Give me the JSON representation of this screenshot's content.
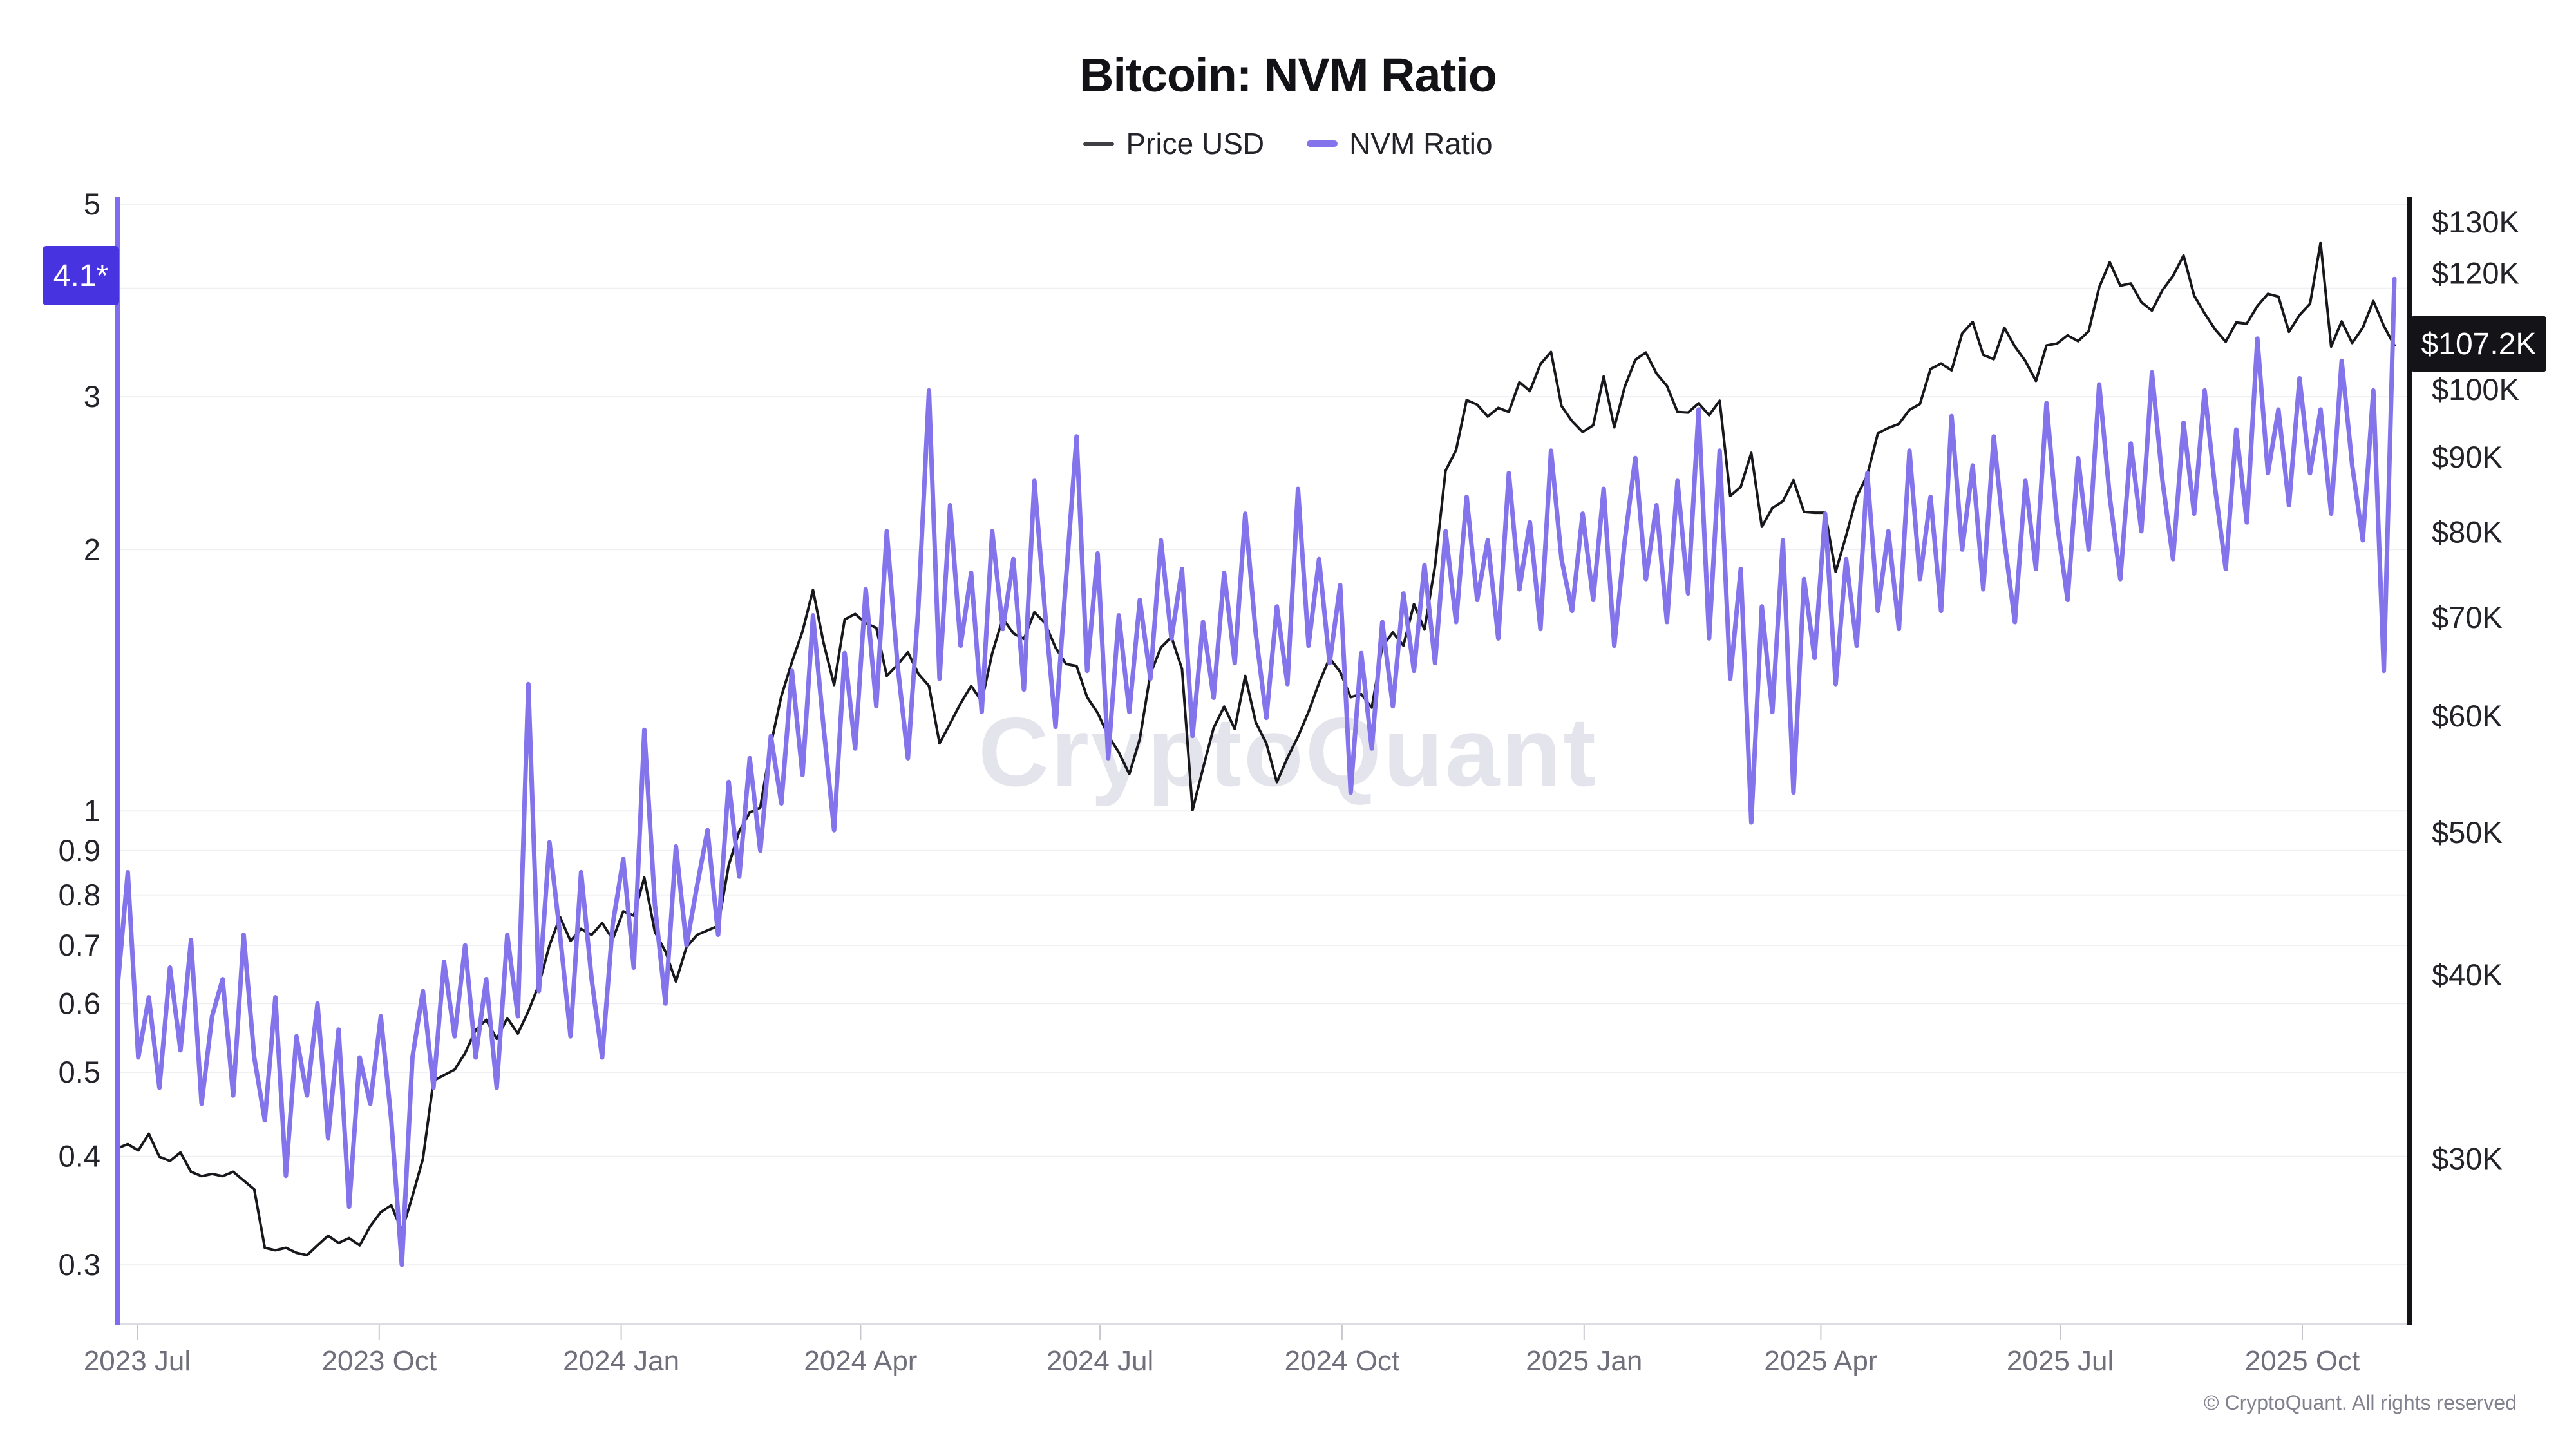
{
  "header": {
    "title": "Bitcoin: NVM Ratio"
  },
  "legend": {
    "items": [
      {
        "label": "Price USD",
        "color": "#3f3f46"
      },
      {
        "label": "NVM Ratio",
        "color": "#8374ec"
      }
    ]
  },
  "watermark": {
    "text": "CryptoQuant"
  },
  "footer": {
    "copyright": "© CryptoQuant. All rights reserved"
  },
  "annotations": {
    "nvm_last": {
      "label": "4.1*",
      "value": 4.1,
      "bg": "#4733df",
      "text_color": "#ffffff"
    },
    "price_last": {
      "label": "$107.2K",
      "value": 107.2,
      "bg": "#141418",
      "text_color": "#ffffff"
    }
  },
  "chart_data": {
    "type": "line",
    "title": "Bitcoin: NVM Ratio",
    "start_date": "2023-06-23",
    "end_date": "2025-11-05",
    "sample_interval_days": 4,
    "grid": true,
    "legend_position": "top-center",
    "colors": {
      "nvm_line": "#8374ec",
      "nvm_axis": "#7e6df0",
      "price_line": "#17171c",
      "price_axis": "#131318",
      "gridline": "#f0f0f4",
      "x_axis_line": "#dcdce3",
      "x_tick": "#c6c6cf",
      "tick_label": "#232329",
      "x_label": "#70707c",
      "watermark": "#e4e4ec"
    },
    "x_axis": {
      "ticks": [
        {
          "label": "2023 Jul",
          "day": 0
        },
        {
          "label": "2023 Oct",
          "day": 92
        },
        {
          "label": "2024 Jan",
          "day": 184
        },
        {
          "label": "2024 Apr",
          "day": 275
        },
        {
          "label": "2024 Jul",
          "day": 366
        },
        {
          "label": "2024 Oct",
          "day": 458
        },
        {
          "label": "2025 Jan",
          "day": 550
        },
        {
          "label": "2025 Apr",
          "day": 640
        },
        {
          "label": "2025 Jul",
          "day": 731
        },
        {
          "label": "2025 Oct",
          "day": 823
        }
      ]
    },
    "left_axis": {
      "name": "NVM Ratio",
      "scale": "log",
      "range": [
        0.256,
        5.06
      ],
      "last_value": 4.1,
      "ticks": [
        {
          "label": "5",
          "value": 5
        },
        {
          "label": "3",
          "value": 3
        },
        {
          "label": "2",
          "value": 2
        },
        {
          "label": "1",
          "value": 1
        },
        {
          "label": "0.9",
          "value": 0.9
        },
        {
          "label": "0.8",
          "value": 0.8
        },
        {
          "label": "0.7",
          "value": 0.7
        },
        {
          "label": "0.6",
          "value": 0.6
        },
        {
          "label": "0.5",
          "value": 0.5
        },
        {
          "label": "0.4",
          "value": 0.4
        },
        {
          "label": "0.3",
          "value": 0.3
        }
      ],
      "gridline_values": [
        5,
        4,
        3,
        2,
        1,
        0.9,
        0.8,
        0.7,
        0.6,
        0.5,
        0.4,
        0.3
      ]
    },
    "right_axis": {
      "name": "Price USD",
      "scale": "log",
      "unit": "thousand USD",
      "range": [
        23.2,
        134.7
      ],
      "last_value": 107.2,
      "ticks": [
        {
          "label": "$130K",
          "value": 130
        },
        {
          "label": "$120K",
          "value": 120
        },
        {
          "label": "$100K",
          "value": 100
        },
        {
          "label": "$90K",
          "value": 90
        },
        {
          "label": "$80K",
          "value": 80
        },
        {
          "label": "$70K",
          "value": 70
        },
        {
          "label": "$60K",
          "value": 60
        },
        {
          "label": "$50K",
          "value": 50
        },
        {
          "label": "$40K",
          "value": 40
        },
        {
          "label": "$30K",
          "value": 30
        }
      ]
    },
    "series": [
      {
        "name": "Price USD",
        "axis": "right",
        "color": "#17171c",
        "width": 4,
        "values": [
          30.5,
          30.7,
          30.4,
          31.2,
          30.1,
          29.9,
          30.3,
          29.4,
          29.2,
          29.3,
          29.2,
          29.4,
          29.0,
          28.6,
          26.1,
          26.0,
          26.1,
          25.9,
          25.8,
          26.2,
          26.6,
          26.3,
          26.5,
          26.2,
          27.0,
          27.6,
          27.9,
          26.8,
          28.3,
          30.0,
          33.9,
          34.2,
          34.5,
          35.4,
          36.7,
          37.3,
          36.2,
          37.4,
          36.5,
          37.8,
          39.4,
          41.9,
          43.8,
          42.2,
          43.0,
          42.6,
          43.4,
          42.3,
          44.2,
          43.9,
          46.6,
          42.8,
          41.5,
          39.6,
          41.8,
          42.6,
          42.9,
          43.2,
          47.5,
          50.1,
          51.6,
          52.0,
          57.4,
          61.9,
          65.3,
          68.5,
          73.1,
          67.3,
          63.0,
          69.8,
          70.4,
          69.4,
          68.9,
          63.9,
          65.0,
          66.3,
          64.1,
          62.9,
          57.5,
          59.3,
          61.2,
          62.9,
          61.4,
          66.2,
          69.9,
          68.3,
          67.7,
          70.6,
          69.4,
          66.8,
          65.1,
          64.9,
          61.8,
          60.3,
          58.2,
          56.7,
          54.8,
          57.9,
          64.1,
          66.8,
          67.9,
          64.6,
          51.8,
          55.3,
          58.9,
          60.9,
          58.8,
          63.9,
          59.4,
          57.5,
          54.1,
          56.2,
          58.1,
          60.4,
          63.2,
          65.7,
          64.3,
          61.8,
          62.1,
          60.8,
          66.9,
          68.4,
          67.0,
          71.5,
          68.7,
          75.9,
          88.1,
          91.0,
          98.4,
          97.7,
          95.9,
          97.2,
          96.6,
          101.2,
          99.8,
          104.1,
          106.1,
          97.5,
          95.2,
          93.6,
          94.6,
          102.1,
          94.3,
          100.5,
          104.8,
          106.0,
          102.6,
          100.6,
          96.6,
          96.5,
          97.9,
          96.1,
          98.3,
          84.7,
          85.9,
          90.6,
          80.7,
          83.1,
          84.0,
          86.8,
          82.6,
          82.5,
          82.5,
          75.2,
          79.6,
          84.6,
          87.5,
          93.4,
          94.2,
          94.8,
          96.9,
          97.8,
          103.3,
          104.2,
          103.1,
          109.2,
          111.2,
          105.6,
          104.9,
          110.2,
          107.0,
          104.6,
          101.4,
          107.2,
          107.5,
          108.9,
          107.9,
          109.6,
          117.4,
          122.1,
          117.7,
          118.1,
          114.7,
          113.2,
          116.9,
          119.5,
          123.4,
          115.9,
          112.7,
          109.9,
          107.8,
          111.1,
          110.9,
          114.0,
          116.2,
          115.7,
          109.5,
          112.4,
          114.4,
          125.9,
          107.0,
          111.3,
          107.6,
          110.2,
          114.9,
          110.5,
          107.2
        ]
      },
      {
        "name": "NVM Ratio",
        "axis": "left",
        "color": "#8374ec",
        "width": 7,
        "values": [
          0.62,
          0.85,
          0.52,
          0.61,
          0.48,
          0.66,
          0.53,
          0.71,
          0.46,
          0.58,
          0.64,
          0.47,
          0.72,
          0.52,
          0.44,
          0.61,
          0.38,
          0.55,
          0.47,
          0.6,
          0.42,
          0.56,
          0.35,
          0.52,
          0.46,
          0.58,
          0.44,
          0.3,
          0.52,
          0.62,
          0.48,
          0.67,
          0.55,
          0.7,
          0.52,
          0.64,
          0.48,
          0.72,
          0.58,
          1.4,
          0.62,
          0.92,
          0.72,
          0.55,
          0.85,
          0.64,
          0.52,
          0.74,
          0.88,
          0.66,
          1.24,
          0.78,
          0.6,
          0.91,
          0.7,
          0.82,
          0.95,
          0.72,
          1.08,
          0.84,
          1.15,
          0.9,
          1.22,
          1.02,
          1.45,
          1.1,
          1.68,
          1.25,
          0.95,
          1.52,
          1.18,
          1.8,
          1.32,
          2.1,
          1.48,
          1.15,
          1.72,
          3.05,
          1.42,
          2.25,
          1.55,
          1.88,
          1.3,
          2.1,
          1.62,
          1.95,
          1.38,
          2.4,
          1.7,
          1.25,
          1.85,
          2.7,
          1.45,
          1.98,
          1.15,
          1.68,
          1.3,
          1.75,
          1.42,
          2.05,
          1.58,
          1.9,
          1.22,
          1.65,
          1.35,
          1.88,
          1.48,
          2.2,
          1.6,
          1.28,
          1.72,
          1.4,
          2.35,
          1.55,
          1.95,
          1.48,
          1.82,
          1.05,
          1.52,
          1.18,
          1.65,
          1.32,
          1.78,
          1.45,
          1.92,
          1.48,
          2.1,
          1.65,
          2.3,
          1.75,
          2.05,
          1.58,
          2.45,
          1.8,
          2.15,
          1.62,
          2.6,
          1.95,
          1.7,
          2.2,
          1.75,
          2.35,
          1.55,
          2.05,
          2.55,
          1.85,
          2.25,
          1.65,
          2.4,
          1.78,
          2.9,
          1.58,
          2.6,
          1.42,
          1.9,
          0.97,
          1.72,
          1.3,
          2.05,
          1.05,
          1.85,
          1.5,
          2.2,
          1.4,
          1.95,
          1.55,
          2.45,
          1.7,
          2.1,
          1.62,
          2.6,
          1.85,
          2.3,
          1.7,
          2.85,
          2.0,
          2.5,
          1.8,
          2.7,
          2.05,
          1.65,
          2.4,
          1.9,
          2.95,
          2.15,
          1.75,
          2.55,
          2.0,
          3.1,
          2.3,
          1.85,
          2.65,
          2.1,
          3.2,
          2.4,
          1.95,
          2.8,
          2.2,
          3.05,
          2.35,
          1.9,
          2.75,
          2.15,
          3.5,
          2.45,
          2.9,
          2.25,
          3.15,
          2.45,
          2.9,
          2.2,
          3.3,
          2.5,
          2.05,
          3.05,
          1.45,
          4.1
        ]
      }
    ]
  }
}
